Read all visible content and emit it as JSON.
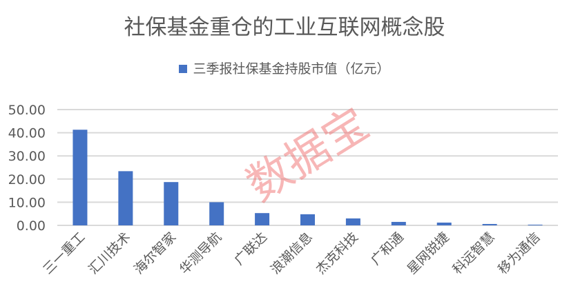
{
  "chart_data": {
    "type": "bar",
    "title": "社保基金重仓的工业互联网概念股",
    "series": [
      {
        "name": "三季报社保基金持股市值（亿元）",
        "values": [
          41.3,
          23.4,
          18.7,
          10.0,
          5.3,
          4.8,
          3.0,
          1.5,
          1.2,
          0.6,
          0.3
        ]
      }
    ],
    "categories": [
      "三一重工",
      "汇川技术",
      "海尔智家",
      "华测导航",
      "广联达",
      "浪潮信息",
      "杰克科技",
      "广和通",
      "星网锐捷",
      "科远智慧",
      "移为通信"
    ],
    "yticks": [
      "0.00",
      "10.00",
      "20.00",
      "30.00",
      "40.00",
      "50.00"
    ],
    "ylim": [
      0,
      50
    ],
    "grid": true,
    "legend": "top",
    "color": "#4472C4"
  },
  "watermark": "数据宝"
}
